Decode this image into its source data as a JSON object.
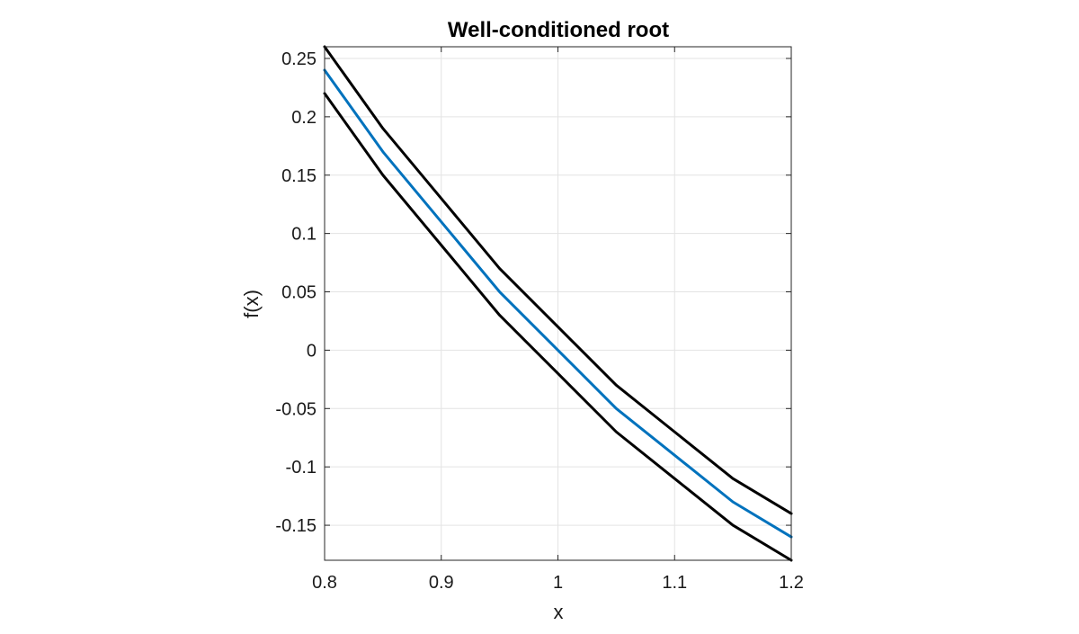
{
  "chart_data": {
    "type": "line",
    "title": "Well-conditioned root",
    "xlabel": "x",
    "ylabel": "f(x)",
    "xlim": [
      0.8,
      1.2
    ],
    "ylim": [
      -0.18,
      0.26
    ],
    "grid": true,
    "xticks": [
      0.8,
      0.9,
      1.0,
      1.1,
      1.2
    ],
    "xtick_labels": [
      "0.8",
      "0.9",
      "1",
      "1.1",
      "1.2"
    ],
    "yticks": [
      -0.15,
      -0.1,
      -0.05,
      0,
      0.05,
      0.1,
      0.15,
      0.2,
      0.25
    ],
    "ytick_labels": [
      "-0.15",
      "-0.1",
      "-0.05",
      "0",
      "0.05",
      "0.1",
      "0.15",
      "0.2",
      "0.25"
    ],
    "series": [
      {
        "color": "#000000",
        "x": [
          0.8,
          0.85,
          0.9,
          0.95,
          1.0,
          1.05,
          1.1,
          1.15,
          1.2
        ],
        "y": [
          0.26,
          0.19,
          0.13,
          0.07,
          0.02,
          -0.03,
          -0.07,
          -0.11,
          -0.14
        ]
      },
      {
        "color": "#0072BD",
        "x": [
          0.8,
          0.85,
          0.9,
          0.95,
          1.0,
          1.05,
          1.1,
          1.15,
          1.2
        ],
        "y": [
          0.24,
          0.17,
          0.11,
          0.05,
          0.0,
          -0.05,
          -0.09,
          -0.13,
          -0.16
        ]
      },
      {
        "color": "#000000",
        "x": [
          0.8,
          0.85,
          0.9,
          0.95,
          1.0,
          1.05,
          1.1,
          1.15,
          1.2
        ],
        "y": [
          0.22,
          0.15,
          0.09,
          0.03,
          -0.02,
          -0.07,
          -0.11,
          -0.15,
          -0.18
        ]
      }
    ]
  }
}
